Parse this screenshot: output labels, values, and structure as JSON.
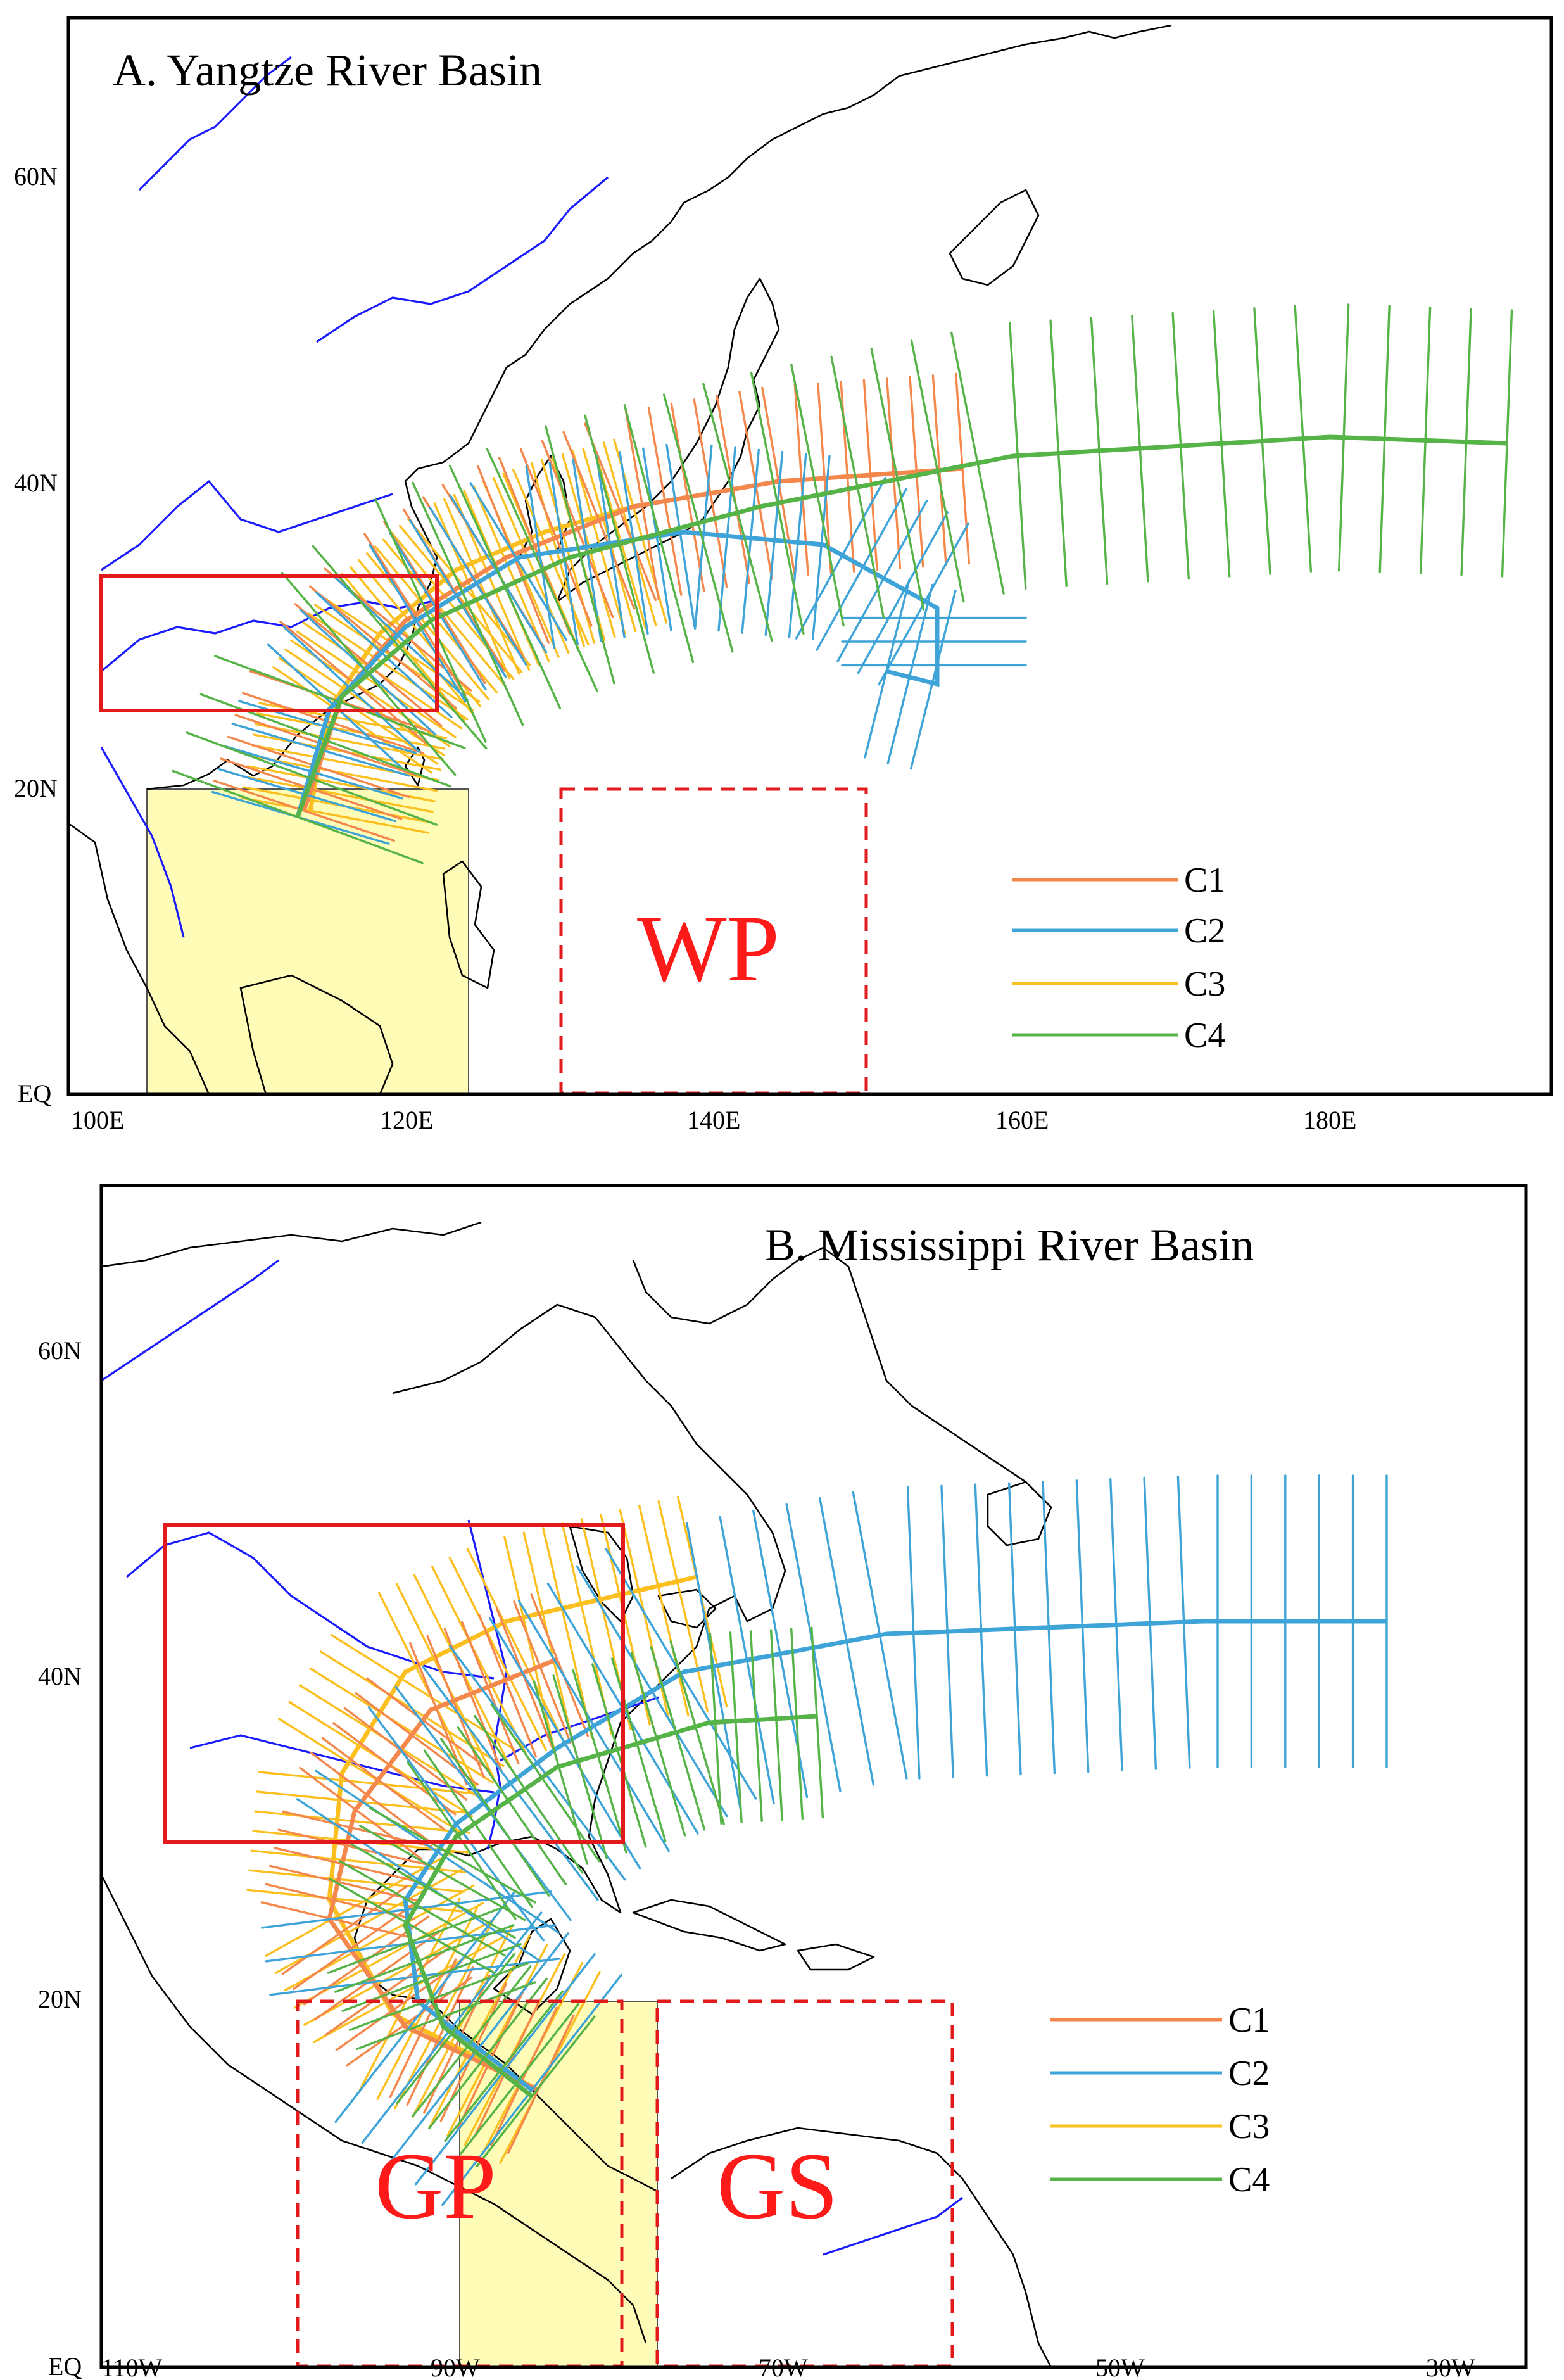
{
  "colors": {
    "C1": "#f4874b",
    "C2": "#3ea4d8",
    "C3": "#fbc020",
    "C4": "#55b347",
    "box_red": "#e31a1c",
    "river": "#1a1aff",
    "yellow_region": "#fffcb8"
  },
  "panels": [
    {
      "title": "A. Yangtze River Basin",
      "x_ticks": [
        "100E",
        "120E",
        "140E",
        "160E",
        "180E"
      ],
      "y_ticks": [
        "EQ",
        "20N",
        "40N",
        "60N"
      ],
      "region_labels": [
        "WP"
      ],
      "legend": [
        "C1",
        "C2",
        "C3",
        "C4"
      ]
    },
    {
      "title": "B. Mississippi River Basin",
      "x_ticks": [
        "110W",
        "90W",
        "70W",
        "50W",
        "30W"
      ],
      "y_ticks": [
        "EQ",
        "20N",
        "40N",
        "60N"
      ],
      "region_labels": [
        "GP",
        "GS"
      ],
      "legend": [
        "C1",
        "C2",
        "C3",
        "C4"
      ]
    }
  ]
}
